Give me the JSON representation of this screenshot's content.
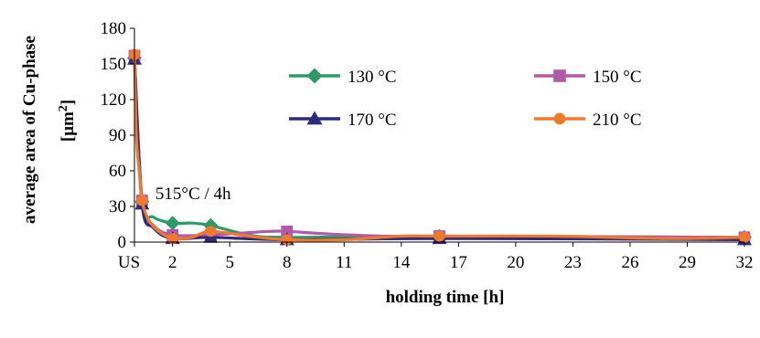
{
  "chart_data": {
    "type": "line",
    "title": "",
    "xlabel": "holding time [h]",
    "ylabel_line1": "average area of Cu-phase",
    "ylabel_line2": "[μm",
    "ylabel_sup": "2",
    "ylabel_close": "]",
    "ylim": [
      0,
      180
    ],
    "y_ticks": [
      "0",
      "30",
      "60",
      "90",
      "120",
      "150",
      "180"
    ],
    "x_ticks": [
      "US",
      "2",
      "5",
      "8",
      "11",
      "14",
      "17",
      "20",
      "23",
      "26",
      "29",
      "32"
    ],
    "x_tick_values": [
      0,
      2,
      5,
      8,
      11,
      14,
      17,
      20,
      23,
      26,
      29,
      32
    ],
    "xlim": [
      0,
      32
    ],
    "annotation": "515°C / 4h",
    "annotation_x": 1.1,
    "annotation_y": 36,
    "legend_position": "top-right, inside plot",
    "series": [
      {
        "name": "130 °C",
        "color": "#2e9a6a",
        "marker": "diamond",
        "x": [
          0,
          0.4,
          1,
          2,
          3,
          4,
          6,
          8,
          16,
          32
        ],
        "y": [
          155,
          34,
          21,
          16,
          16,
          14,
          6,
          4,
          5,
          4
        ],
        "marked": [
          true,
          true,
          false,
          true,
          false,
          true,
          false,
          true,
          true,
          true
        ]
      },
      {
        "name": "150 °C",
        "color": "#b05aa8",
        "marker": "square",
        "x": [
          0,
          0.4,
          1,
          2,
          4,
          7,
          8,
          10,
          13,
          16,
          32
        ],
        "y": [
          157,
          35,
          14,
          6,
          6,
          9,
          9,
          7,
          5,
          5,
          4
        ],
        "marked": [
          true,
          true,
          false,
          true,
          true,
          false,
          true,
          false,
          false,
          true,
          true
        ]
      },
      {
        "name": "170 °C",
        "color": "#2f2a7a",
        "marker": "triangle",
        "x": [
          0,
          0.4,
          1,
          2,
          4,
          8,
          16,
          32
        ],
        "y": [
          154,
          32,
          12,
          3,
          4,
          2,
          3,
          2
        ],
        "marked": [
          true,
          true,
          false,
          true,
          true,
          true,
          true,
          true
        ]
      },
      {
        "name": "210 °C",
        "color": "#ef7a2e",
        "marker": "circle",
        "x": [
          0,
          0.1,
          0.25,
          0.4,
          0.7,
          1.2,
          2,
          3,
          4,
          6,
          8,
          11,
          14,
          16,
          22,
          28,
          32
        ],
        "y": [
          158,
          90,
          60,
          35,
          20,
          10,
          3,
          4,
          9,
          5,
          2,
          2,
          5,
          5,
          5,
          3,
          4
        ],
        "marked": [
          true,
          false,
          false,
          true,
          false,
          false,
          true,
          false,
          true,
          false,
          true,
          false,
          false,
          true,
          false,
          false,
          true
        ]
      }
    ]
  }
}
